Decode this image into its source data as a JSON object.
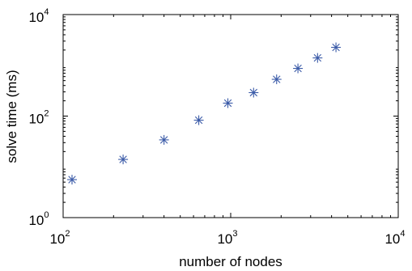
{
  "chart_data": {
    "type": "scatter",
    "title": "",
    "xlabel": "number of nodes",
    "ylabel": "solve time (ms)",
    "xscale": "log",
    "yscale": "log",
    "xlim": [
      100,
      10000
    ],
    "ylim": [
      1,
      10000
    ],
    "x_ticks": [
      {
        "value": 100,
        "base": "10",
        "exp": "2"
      },
      {
        "value": 1000,
        "base": "10",
        "exp": "3"
      },
      {
        "value": 10000,
        "base": "10",
        "exp": "4"
      }
    ],
    "y_ticks": [
      {
        "value": 1,
        "base": "10",
        "exp": "0"
      },
      {
        "value": 100,
        "base": "10",
        "exp": "2"
      },
      {
        "value": 10000,
        "base": "10",
        "exp": "4"
      }
    ],
    "grid": false,
    "legend": "none",
    "marker": "asterisk",
    "marker_color": "#3b5ba8",
    "series": [
      {
        "x": [
          113,
          228,
          400,
          645,
          962,
          1370,
          1880,
          2520,
          3300,
          4250
        ],
        "y": [
          5.6,
          14,
          34,
          83,
          180,
          290,
          530,
          870,
          1400,
          2260
        ]
      }
    ]
  }
}
